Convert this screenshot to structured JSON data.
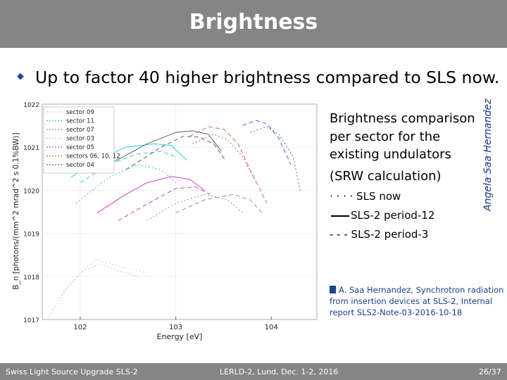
{
  "slide": {
    "title": "Brightness",
    "bullet": "Up to factor 40 higher brightness compared to SLS now.",
    "caption_lines": [
      "Brightness comparison",
      "per sector for the",
      "existing undulators",
      "(SRW calculation)"
    ],
    "legend_now": "· · · · SLS now",
    "legend_p12": "SLS-2 period-12",
    "legend_p3": "- - -  SLS-2 period-3",
    "author_vertical": "Angela Saa Hernandez",
    "reference": "A. Saa Hernandez, Synchrotron radiation from insertion devices at SLS-2, Internal report SLS2-Note-03-2016-10-18",
    "footer_left": "Swiss Light Source Upgrade  SLS-2",
    "footer_center": "LERLD-2, Lund, Dec. 1-2, 2016",
    "footer_right": "26/37"
  },
  "colors": {
    "title_bar": "#858585",
    "accent": "#1f3f8a"
  },
  "chart_data": {
    "type": "line",
    "title": "",
    "xlabel": "Energy [eV]",
    "ylabel": "B_n [photons/(mm^2 mrad^2 s 0.1%BW)]",
    "xscale": "log",
    "yscale": "log",
    "xlim": [
      40,
      30000
    ],
    "ylim": [
      1e+17,
      1e+22
    ],
    "x_ticks": [
      "10^2",
      "10^3",
      "10^4"
    ],
    "y_ticks": [
      "10^17",
      "10^18",
      "10^19",
      "10^20",
      "10^21",
      "10^22"
    ],
    "legend_position": "top-left",
    "legend": [
      {
        "name": "sector 09",
        "color": "#b6e0b6"
      },
      {
        "name": "sector 11",
        "color": "#2ecfe0"
      },
      {
        "name": "sector 07",
        "color": "#909090"
      },
      {
        "name": "sector 03",
        "color": "#c8c8c8"
      },
      {
        "name": "sector 05",
        "color": "#d040d0"
      },
      {
        "name": "sectors 06, 10, 12",
        "color": "#e06060"
      },
      {
        "name": "sector 04",
        "color": "#5060c0"
      }
    ],
    "series": [
      {
        "color": "#b6e0b6",
        "dash": "2 3",
        "points": [
          [
            45,
            1e+17
          ],
          [
            70,
            5e+17
          ],
          [
            110,
            1.5e+18
          ],
          [
            150,
            2.5e+18
          ],
          [
            200,
            2e+18
          ],
          [
            300,
            1.6e+18
          ],
          [
            500,
            1.2e+18
          ]
        ]
      },
      {
        "color": "#b6e0b6",
        "dash": "2 3",
        "points": [
          [
            60,
            3e+17
          ],
          [
            100,
            1.2e+18
          ],
          [
            160,
            2e+18
          ],
          [
            240,
            1.4e+18
          ],
          [
            400,
            1e+18
          ]
        ]
      },
      {
        "color": "#2ecfe0",
        "dash": "",
        "points": [
          [
            80,
            2e+20
          ],
          [
            150,
            5e+20
          ],
          [
            300,
            1e+21
          ],
          [
            600,
            1.2e+21
          ],
          [
            900,
            1.1e+21
          ],
          [
            1300,
            5e+20
          ]
        ]
      },
      {
        "color": "#2ecfe0",
        "dash": "6 4",
        "points": [
          [
            100,
            1.5e+20
          ],
          [
            200,
            4e+20
          ],
          [
            400,
            7e+20
          ],
          [
            700,
            8e+20
          ],
          [
            1000,
            6e+20
          ]
        ]
      },
      {
        "color": "#2ecfe0",
        "dash": "2 3",
        "points": [
          [
            90,
            5e+19
          ],
          [
            200,
            2e+20
          ],
          [
            400,
            4e+20
          ],
          [
            700,
            3e+20
          ],
          [
            1000,
            1.5e+20
          ]
        ]
      },
      {
        "color": "#606060",
        "dash": "",
        "points": [
          [
            200,
            4e+20
          ],
          [
            500,
            1.2e+21
          ],
          [
            1000,
            2.2e+21
          ],
          [
            1500,
            2.4e+21
          ],
          [
            2200,
            2e+21
          ],
          [
            3000,
            8e+20
          ]
        ]
      },
      {
        "color": "#606060",
        "dash": "6 4",
        "points": [
          [
            300,
            3e+20
          ],
          [
            700,
            1e+21
          ],
          [
            1200,
            1.8e+21
          ],
          [
            1800,
            1.7e+21
          ],
          [
            2500,
            1.2e+21
          ],
          [
            3300,
            5e+20
          ]
        ]
      },
      {
        "color": "#d040d0",
        "dash": "",
        "points": [
          [
            150,
            3e+19
          ],
          [
            300,
            8e+19
          ],
          [
            500,
            1.5e+20
          ],
          [
            900,
            2.1e+20
          ],
          [
            1400,
            1.8e+20
          ],
          [
            2000,
            1e+20
          ]
        ]
      },
      {
        "color": "#d040d0",
        "dash": "6 4",
        "points": [
          [
            250,
            2e+19
          ],
          [
            600,
            6e+19
          ],
          [
            1000,
            1.1e+20
          ],
          [
            1600,
            1.2e+20
          ],
          [
            2300,
            8e+19
          ]
        ]
      },
      {
        "color": "#909090",
        "dash": "2 3",
        "points": [
          [
            500,
            2e+19
          ],
          [
            1000,
            5e+19
          ],
          [
            2000,
            8e+19
          ],
          [
            3500,
            6e+19
          ],
          [
            5000,
            3e+19
          ]
        ]
      },
      {
        "color": "#909090",
        "dash": "6 4",
        "points": [
          [
            1000,
            3e+19
          ],
          [
            2000,
            6e+19
          ],
          [
            4000,
            8e+19
          ],
          [
            6000,
            6e+19
          ],
          [
            8000,
            3e+19
          ]
        ]
      },
      {
        "color": "#e06060",
        "dash": "6 4",
        "points": [
          [
            1400,
            1.8e+21
          ],
          [
            2200,
            3e+21
          ],
          [
            3200,
            2.6e+21
          ],
          [
            4500,
            1.2e+21
          ],
          [
            6000,
            3e+20
          ],
          [
            9000,
            5e+19
          ]
        ]
      },
      {
        "color": "#e06060",
        "dash": "2 3",
        "points": [
          [
            1500,
            1.2e+21
          ],
          [
            2500,
            2e+21
          ],
          [
            3500,
            1.5e+21
          ],
          [
            5000,
            6e+20
          ],
          [
            7000,
            1.5e+20
          ]
        ]
      },
      {
        "color": "#5060c0",
        "dash": "6 4",
        "points": [
          [
            5000,
            3.2e+21
          ],
          [
            7000,
            4.2e+21
          ],
          [
            9000,
            3.5e+21
          ],
          [
            12000,
            1.6e+21
          ],
          [
            16000,
            4e+20
          ]
        ]
      },
      {
        "color": "#5060c0",
        "dash": "2 3",
        "points": [
          [
            6000,
            2.2e+21
          ],
          [
            9000,
            3e+21
          ],
          [
            12000,
            2e+21
          ],
          [
            17000,
            6e+20
          ],
          [
            20000,
            1e+20
          ]
        ]
      }
    ]
  }
}
